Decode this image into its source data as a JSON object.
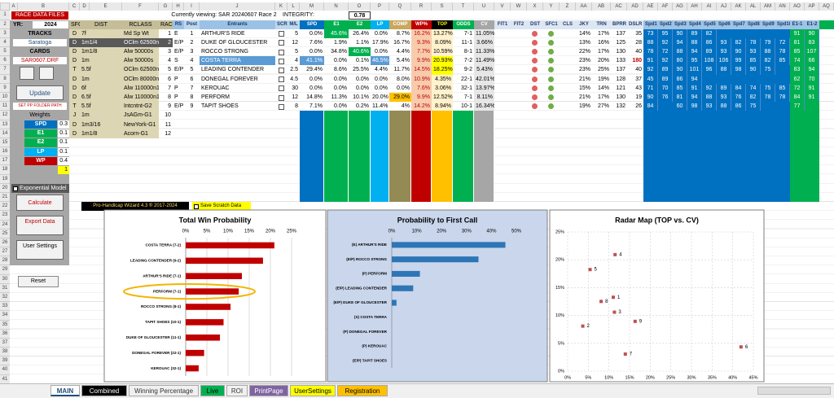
{
  "column_letters": [
    "A",
    "B",
    "C",
    "D",
    "E",
    "F",
    "G",
    "H",
    "I",
    "J",
    "K",
    "L",
    "M",
    "N",
    "O",
    "P",
    "Q",
    "R",
    "S",
    "T",
    "U",
    "V",
    "W",
    "X",
    "Y",
    "Z",
    "AA",
    "AB",
    "AC",
    "AD",
    "AE",
    "AF",
    "AG",
    "AH",
    "AI",
    "AJ",
    "AK",
    "AL",
    "AM",
    "AN",
    "AO",
    "AP",
    "AQ"
  ],
  "row_numbers": [
    1,
    2,
    3,
    4,
    5,
    6,
    7,
    8,
    9,
    10,
    11,
    12,
    13,
    14,
    15,
    16,
    17,
    18,
    19,
    20,
    21,
    22,
    23,
    24,
    25,
    26,
    27,
    28,
    29,
    30,
    31,
    32,
    33,
    34,
    35,
    36,
    37,
    38,
    39,
    40,
    41
  ],
  "left_panel": {
    "race_data_files": "RACE DATA FILES",
    "yr_label": "YR:",
    "yr": "2024",
    "tracks_label": "TRACKS",
    "track": "Saratoga",
    "cards_label": "CARDS",
    "card": "SAR0607.DRF",
    "update": "Update",
    "set_path": "SET PP FOLDER PATH",
    "weights_label": "Weights",
    "weights": [
      {
        "name": "SPD",
        "value": 0.3
      },
      {
        "name": "E1",
        "value": 0.1
      },
      {
        "name": "E2",
        "value": 0.1
      },
      {
        "name": "LP",
        "value": 0.1
      },
      {
        "name": "WP",
        "value": 0.4
      }
    ],
    "weight_total": 1,
    "exponential_model": "Exponential Model",
    "calculate": "Calculate",
    "export_data": "Export Data",
    "user_settings": "User Settings",
    "reset": "Reset"
  },
  "header": {
    "viewing": "Currently viewing: SAR 20240607 Race 2",
    "integrity_label": "INTEGRITY:",
    "integrity": 0.78
  },
  "race_table": {
    "columns": [
      "SFC",
      "DIST",
      "RCLASS",
      "RACE"
    ],
    "rows": [
      [
        "D",
        "7f",
        "Md Sp Wt",
        1
      ],
      [
        "D",
        "1m1/4",
        "OClm 62500n2x",
        2
      ],
      [
        "D",
        "1m1/8",
        "Alw 50000s",
        3
      ],
      [
        "D",
        "1m",
        "Alw 50000s",
        4
      ],
      [
        "T",
        "5.5f",
        "OClm 62500n2x",
        5
      ],
      [
        "D",
        "1m",
        "OClm 80000n1x",
        6
      ],
      [
        "D",
        "6f",
        "Alw 110000n1x",
        7
      ],
      [
        "D",
        "6.5f",
        "Alw 110000n1x",
        8
      ],
      [
        "T",
        "5.5f",
        "Intcntnt-G2",
        9
      ],
      [
        "J",
        "1m",
        "JsAGm-G1",
        10
      ],
      [
        "D",
        "1m3/16",
        "NewYork-G1",
        11
      ],
      [
        "D",
        "1m1/8",
        "Acorn-G1",
        12
      ]
    ]
  },
  "entrants_table": {
    "columns": [
      "RS",
      "Post",
      "Entrants",
      "SCR",
      "M/L",
      "SPD",
      "E1",
      "E2",
      "LP",
      "COMP",
      "WP%",
      "TOP",
      "ODDS",
      "CV",
      "FIT1",
      "FIT2",
      "DST",
      "SFC1",
      "CLS",
      "JKY",
      "TRN",
      "BPRR",
      "DSLR"
    ],
    "rows": [
      [
        "E",
        1,
        "ARTHUR'S RIDE",
        5,
        "0.0%",
        "45.6%",
        "26.4%",
        "0.0%",
        "8.7%",
        "16.2%",
        "13.27%",
        "7-1",
        "11.05%",
        "14%",
        "17%",
        137,
        35
      ],
      [
        "E/P",
        2,
        "DUKE OF GLOUCESTER",
        12,
        "7.6%",
        "1.9%",
        "1.1%",
        "17.9%",
        "16.7%",
        "9.3%",
        "8.09%",
        "11-1",
        "3.66%",
        "13%",
        "16%",
        125,
        28
      ],
      [
        "E/P",
        3,
        "ROCCO STRONG",
        5,
        "0.0%",
        "34.8%",
        "40.6%",
        "0.0%",
        "4.4%",
        "7.7%",
        "10.59%",
        "8-1",
        "11.33%",
        "22%",
        "17%",
        130,
        40
      ],
      [
        "S",
        4,
        "COSTA TERRA",
        4,
        "41.1%",
        "0.0%",
        "0.1%",
        "46.5%",
        "5.4%",
        "9.9%",
        "20.93%",
        "7-2",
        "11.49%",
        "23%",
        "20%",
        133,
        180
      ],
      [
        "E/P",
        5,
        "LEADING CONTENDER",
        2.5,
        "29.4%",
        "8.6%",
        "25.5%",
        "4.4%",
        "11.7%",
        "14.5%",
        "18.25%",
        "9-2",
        "5.43%",
        "23%",
        "25%",
        137,
        40
      ],
      [
        "P",
        6,
        "DONEGAL FOREVER",
        4.5,
        "0.0%",
        "0.0%",
        "0.0%",
        "0.0%",
        "8.0%",
        "10.9%",
        "4.35%",
        "22-1",
        "42.01%",
        "21%",
        "19%",
        128,
        37
      ],
      [
        "P",
        7,
        "KEROUAC",
        30,
        "0.0%",
        "0.0%",
        "0.0%",
        "0.0%",
        "0.0%",
        "7.6%",
        "3.06%",
        "32-1",
        "13.97%",
        "15%",
        "14%",
        121,
        43
      ],
      [
        "P",
        8,
        "PERFORM",
        12,
        "14.8%",
        "11.3%",
        "10.1%",
        "20.0%",
        "29.0%",
        "9.9%",
        "12.52%",
        "7-1",
        "8.11%",
        "21%",
        "17%",
        130,
        19
      ],
      [
        "E/P",
        9,
        "TAPIT SHOES",
        8,
        "7.1%",
        "0.0%",
        "0.2%",
        "11.4%",
        "4%",
        "14.2%",
        "8.94%",
        "10-1",
        "16.34%",
        "19%",
        "27%",
        132,
        26
      ]
    ]
  },
  "speed_table": {
    "columns": [
      "Spd1",
      "Spd2",
      "Spd3",
      "Spd4",
      "Spd5",
      "Spd6",
      "Spd7",
      "Spd8",
      "Spd9",
      "Spd10",
      "E1-1",
      "E1-2"
    ],
    "rows": [
      [
        73,
        95,
        90,
        89,
        82,
        null,
        null,
        null,
        null,
        null,
        91,
        90
      ],
      [
        88,
        92,
        94,
        88,
        86,
        93,
        82,
        78,
        79,
        72,
        81,
        83
      ],
      [
        78,
        72,
        88,
        94,
        89,
        93,
        90,
        93,
        88,
        78,
        85,
        107
      ],
      [
        91,
        92,
        80,
        95,
        108,
        106,
        99,
        85,
        82,
        85,
        74,
        66
      ],
      [
        92,
        89,
        90,
        101,
        96,
        88,
        98,
        90,
        75,
        null,
        83,
        94
      ],
      [
        45,
        89,
        86,
        94,
        null,
        null,
        null,
        null,
        null,
        null,
        62,
        70
      ],
      [
        71,
        70,
        85,
        91,
        92,
        89,
        84,
        74,
        75,
        85,
        72,
        91
      ],
      [
        90,
        76,
        81,
        94,
        88,
        93,
        76,
        82,
        78,
        78,
        84,
        91
      ],
      [
        84,
        null,
        60,
        98,
        93,
        88,
        86,
        75,
        null,
        null,
        77,
        null
      ]
    ]
  },
  "footer": {
    "brand": "Pro-Handicap Wizard 4.3 ® 2017-2024",
    "save_scratch": "Save Scratch Data"
  },
  "tabs": [
    "MAIN",
    "Combined",
    "Winning Percentage",
    "Live",
    "ROI",
    "PrintPage",
    "UserSettings",
    "Registration"
  ],
  "chart_data": [
    {
      "type": "bar",
      "orientation": "horizontal",
      "title": "Total Win Probability",
      "categories": [
        "COSTA TERRA (7-2)",
        "LEADING CONTENDER (9-2)",
        "ARTHUR'S RIDE (7-1)",
        "PERFORM (7-1)",
        "ROCCO STRONG (8-1)",
        "TAPIT SHOES (10-1)",
        "DUKE OF GLOUCESTER (11-1)",
        "DONEGAL FOREVER (22-1)",
        "KEROUAC (32-1)"
      ],
      "values": [
        20.93,
        18.25,
        13.27,
        12.52,
        10.59,
        8.94,
        8.09,
        4.35,
        3.06
      ],
      "color": "#c00000",
      "xlim": [
        0,
        25
      ],
      "xticks": [
        {
          "value": 0,
          "label": "0%"
        },
        {
          "value": 5,
          "label": "5%"
        },
        {
          "value": 10,
          "label": "10%"
        },
        {
          "value": 15,
          "label": "15%"
        },
        {
          "value": 20,
          "label": "20%"
        },
        {
          "value": 25,
          "label": "25%"
        }
      ],
      "grid": true,
      "highlight_index": 3
    },
    {
      "type": "bar",
      "orientation": "horizontal",
      "title": "Probability to First Call",
      "categories": [
        "(E) ARTHUR'S RIDE",
        "(E/P) ROCCO STRONG",
        "(P) PERFORM",
        "(E/P) LEADING CONTENDER",
        "(E/P) DUKE OF GLOUCESTER",
        "(S) COSTA TERRA",
        "(P) DONEGAL FOREVER",
        "(P) KEROUAC",
        "(E/P) TAPIT SHOES"
      ],
      "values": [
        45.6,
        34.8,
        11.3,
        8.6,
        1.9,
        0,
        0,
        0,
        0
      ],
      "color": "#2e75b6",
      "xlim": [
        0,
        50
      ],
      "xticks": [
        {
          "value": 0,
          "label": "0%"
        },
        {
          "value": 10,
          "label": "10%"
        },
        {
          "value": 20,
          "label": "20%"
        },
        {
          "value": 30,
          "label": "30%"
        },
        {
          "value": 40,
          "label": "40%"
        },
        {
          "value": 50,
          "label": "50%"
        }
      ],
      "grid": false
    },
    {
      "type": "scatter",
      "title": "Radar Map (TOP vs. CV)",
      "x": [
        11.05,
        3.66,
        11.33,
        11.49,
        5.43,
        42.01,
        13.97,
        8.11,
        16.34
      ],
      "values": [
        13.27,
        8.09,
        10.59,
        20.93,
        18.25,
        4.35,
        3.06,
        12.52,
        8.94
      ],
      "point_labels": [
        "1",
        "2",
        "3",
        "4",
        "5",
        "6",
        "7",
        "8",
        "9"
      ],
      "color": "#c0504d",
      "xlim": [
        0,
        45
      ],
      "xticks": [
        {
          "value": 0,
          "label": "0%"
        },
        {
          "value": 5,
          "label": "5%"
        },
        {
          "value": 10,
          "label": "10%"
        },
        {
          "value": 15,
          "label": "15%"
        },
        {
          "value": 20,
          "label": "20%"
        },
        {
          "value": 25,
          "label": "25%"
        },
        {
          "value": 30,
          "label": "30%"
        },
        {
          "value": 35,
          "label": "35%"
        },
        {
          "value": 40,
          "label": "40%"
        },
        {
          "value": 45,
          "label": "45%"
        }
      ],
      "ylim": [
        0,
        25
      ],
      "yticks": [
        {
          "value": 0,
          "label": "0%"
        },
        {
          "value": 5,
          "label": "5%"
        },
        {
          "value": 10,
          "label": "10%"
        },
        {
          "value": 15,
          "label": "15%"
        },
        {
          "value": 20,
          "label": "20%"
        },
        {
          "value": 25,
          "label": "25%"
        }
      ],
      "grid": true
    }
  ]
}
